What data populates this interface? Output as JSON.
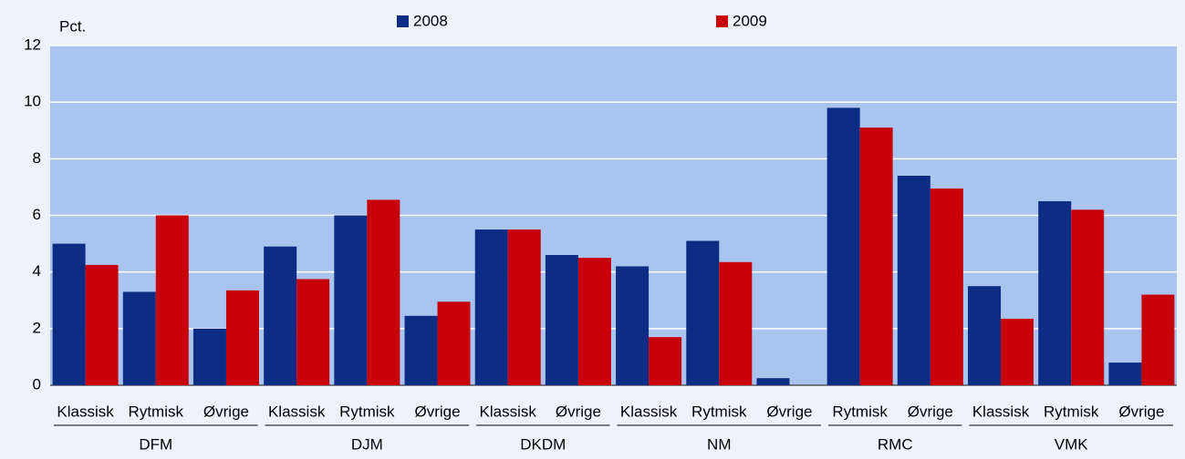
{
  "chart_data": {
    "type": "bar",
    "y_label": "Pct.",
    "groups": [
      {
        "name": "DFM",
        "categories": [
          "Klassisk",
          "Rytmisk",
          "Øvrige"
        ]
      },
      {
        "name": "DJM",
        "categories": [
          "Klassisk",
          "Rytmisk",
          "Øvrige"
        ]
      },
      {
        "name": "DKDM",
        "categories": [
          "Klassisk",
          "Øvrige"
        ]
      },
      {
        "name": "NM",
        "categories": [
          "Klassisk",
          "Rytmisk",
          "Øvrige"
        ]
      },
      {
        "name": "RMC",
        "categories": [
          "Rytmisk",
          "Øvrige"
        ]
      },
      {
        "name": "VMK",
        "categories": [
          "Klassisk",
          "Rytmisk",
          "Øvrige"
        ]
      }
    ],
    "series": [
      {
        "name": "2008",
        "color": "#0c2d83",
        "values": [
          5.0,
          3.3,
          2.0,
          4.9,
          6.0,
          2.45,
          5.5,
          4.6,
          4.2,
          5.1,
          0.25,
          9.8,
          7.4,
          3.5,
          6.5,
          0.8
        ]
      },
      {
        "name": "2009",
        "color": "#c8000a",
        "values": [
          4.25,
          6.0,
          3.35,
          3.75,
          6.55,
          2.95,
          5.5,
          4.5,
          1.7,
          4.35,
          0,
          9.1,
          6.95,
          2.35,
          6.2,
          3.2
        ]
      }
    ],
    "ylim": [
      0,
      12
    ],
    "yticks": [
      0,
      2,
      4,
      6,
      8,
      10,
      12
    ],
    "grid": true
  }
}
